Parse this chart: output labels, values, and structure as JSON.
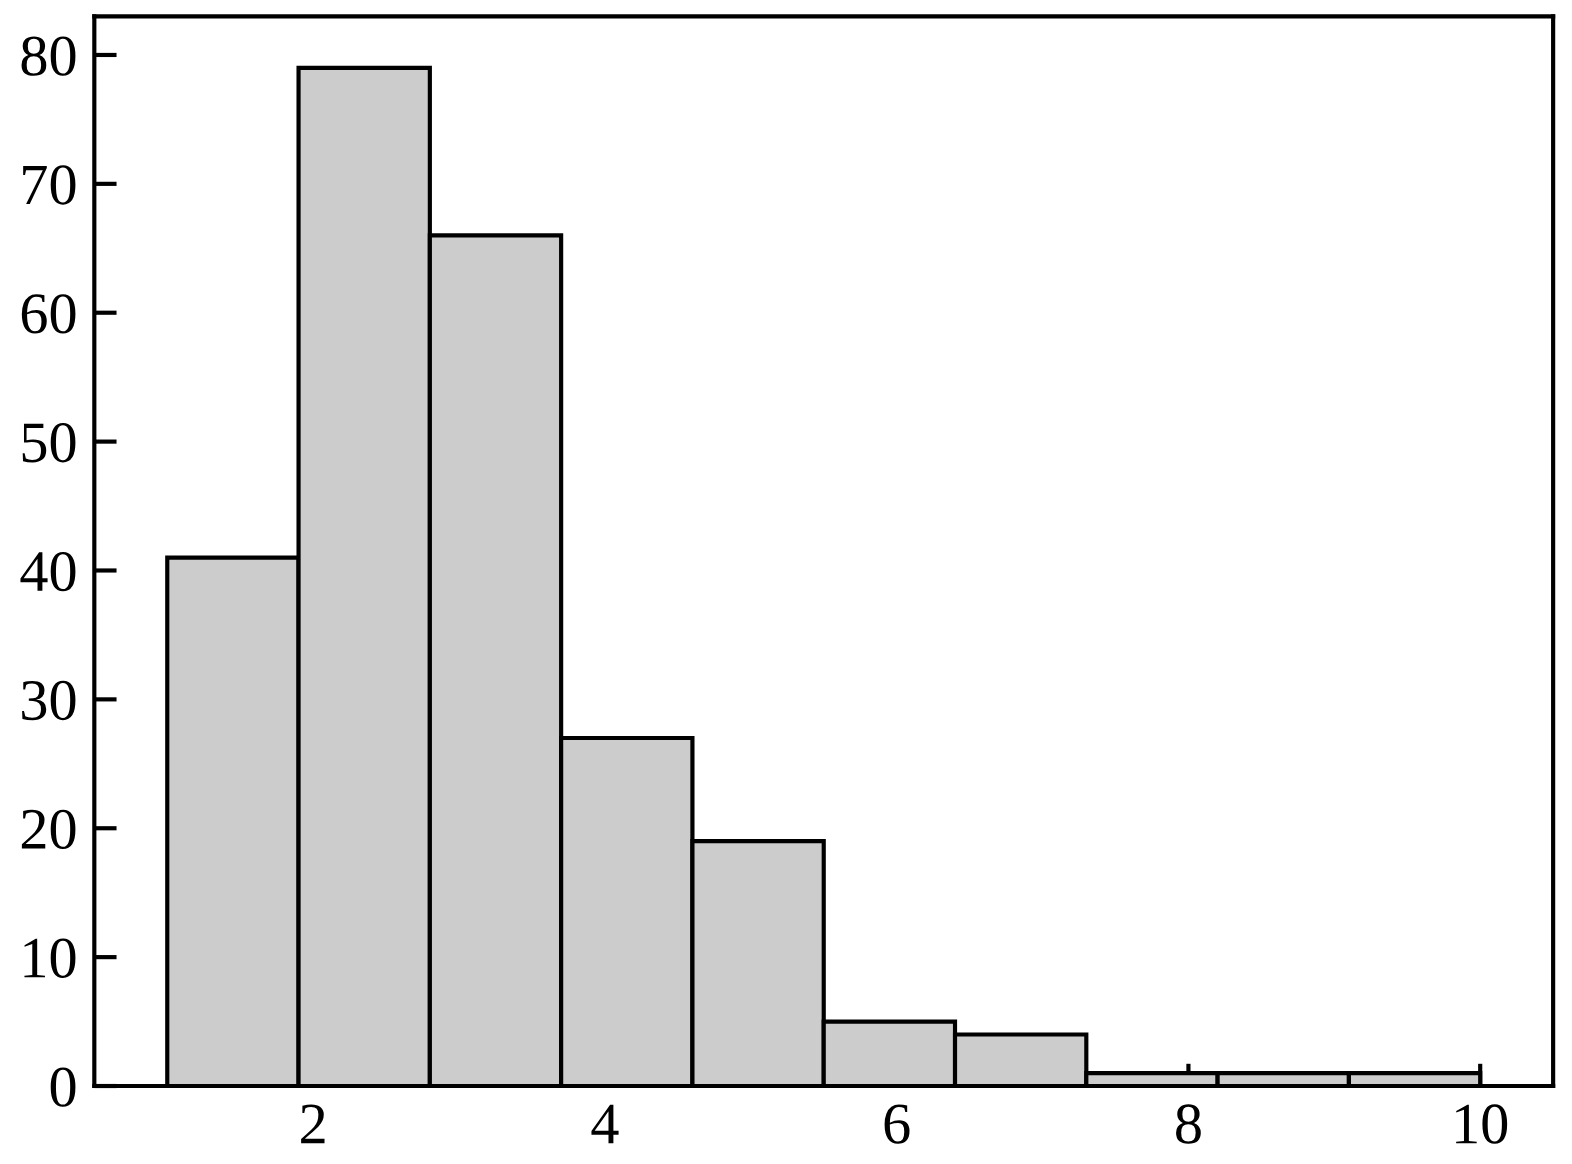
{
  "chart_data": {
    "type": "histogram",
    "bins": [
      1,
      1.9,
      2.8,
      3.7,
      4.6,
      5.5,
      6.4,
      7.3,
      8.2,
      9.1,
      10
    ],
    "values": [
      41,
      79,
      66,
      27,
      19,
      5,
      4,
      1,
      1,
      1
    ],
    "color": "#cccccc",
    "xlim": [
      0.5,
      10.5
    ],
    "xticks": [
      2,
      4,
      6,
      8,
      10
    ],
    "ylim": [
      0,
      83
    ],
    "yticks": [
      0,
      10,
      20,
      30,
      40,
      50,
      60,
      70,
      80
    ]
  }
}
